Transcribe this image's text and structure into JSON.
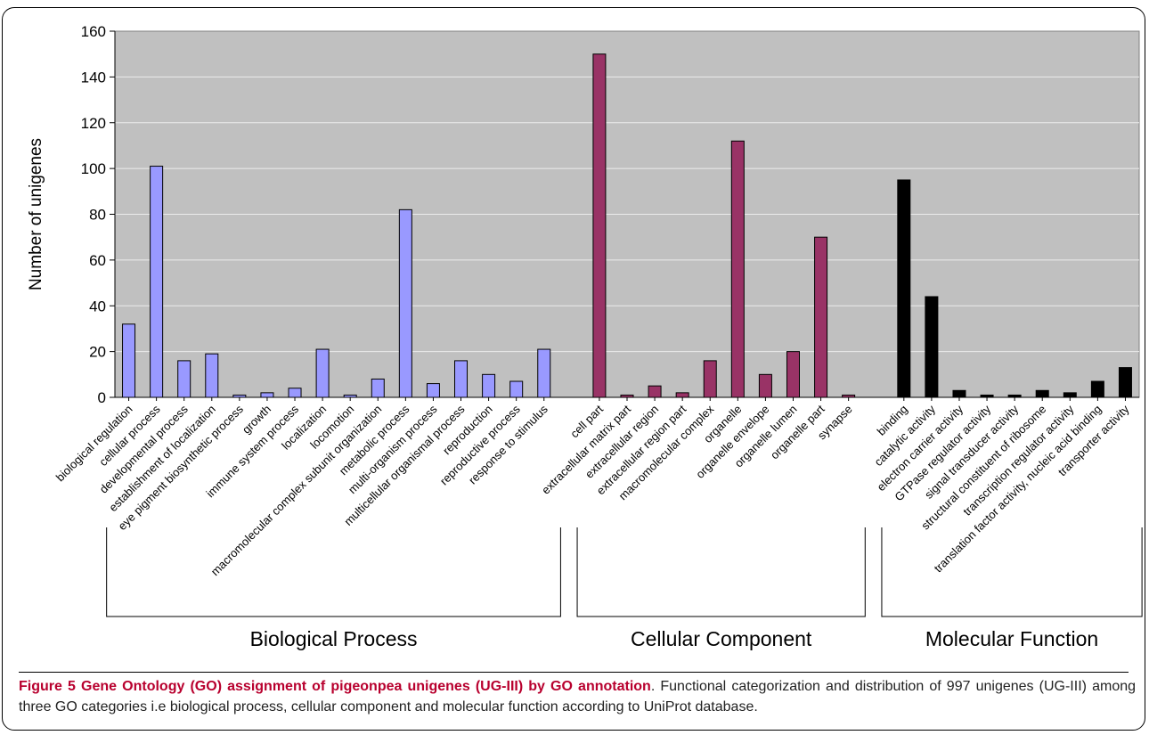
{
  "figure": {
    "caption_label": "Figure 5",
    "caption_title": "Gene Ontology (GO) assignment of pigeonpea unigenes (UG-III) by GO annotation",
    "caption_text": ". Functional categorization and distribution of 997 unigenes (UG-III) among three GO categories i.e biological process, cellular component and molecular function according to UniProt database."
  },
  "chart_data": {
    "type": "bar",
    "title": "",
    "xlabel": "",
    "ylabel": "Number of unigenes",
    "ylim": [
      0,
      160
    ],
    "yticks": [
      0,
      20,
      40,
      60,
      80,
      100,
      120,
      140,
      160
    ],
    "grid": true,
    "legend": "none",
    "colors": {
      "biological_process": "#9999ff",
      "cellular_component": "#993366",
      "molecular_function": "#000000",
      "plot_background": "#c0c0c0"
    },
    "groups": [
      {
        "name": "Biological Process",
        "color_key": "biological_process",
        "categories": [
          "biological regulation",
          "cellular process",
          "developmental process",
          "establishment of localization",
          "eye pigment biosynthetic process",
          "growth",
          "immune system process",
          "localization",
          "locomotion",
          "macromolecular complex subunit organization",
          "metabolic process",
          "multi-organism process",
          "multicellular organismal process",
          "reproduction",
          "reproductive process",
          "response to stimulus"
        ],
        "values": [
          32,
          101,
          16,
          19,
          1,
          2,
          4,
          21,
          1,
          8,
          82,
          6,
          16,
          10,
          7,
          21
        ]
      },
      {
        "name": "Cellular Component",
        "color_key": "cellular_component",
        "categories": [
          "cell part",
          "extracellular matrix part",
          "extracellular region",
          "extracellular region part",
          "macromolecular complex",
          "organelle",
          "organelle envelope",
          "organelle lumen",
          "organelle part",
          "synapse"
        ],
        "values": [
          150,
          1,
          5,
          2,
          16,
          112,
          10,
          20,
          70,
          1
        ]
      },
      {
        "name": "Molecular Function",
        "color_key": "molecular_function",
        "categories": [
          "binding",
          "catalytic activity",
          "electron carrier activity",
          "GTPase regulator activity",
          "signal transducer activity",
          "structural constituent of ribosome",
          "transcription regulator activity",
          "translation factor activity, nucleic acid binding",
          "transporter activity"
        ],
        "values": [
          95,
          44,
          3,
          1,
          1,
          3,
          2,
          7,
          13
        ]
      }
    ]
  }
}
